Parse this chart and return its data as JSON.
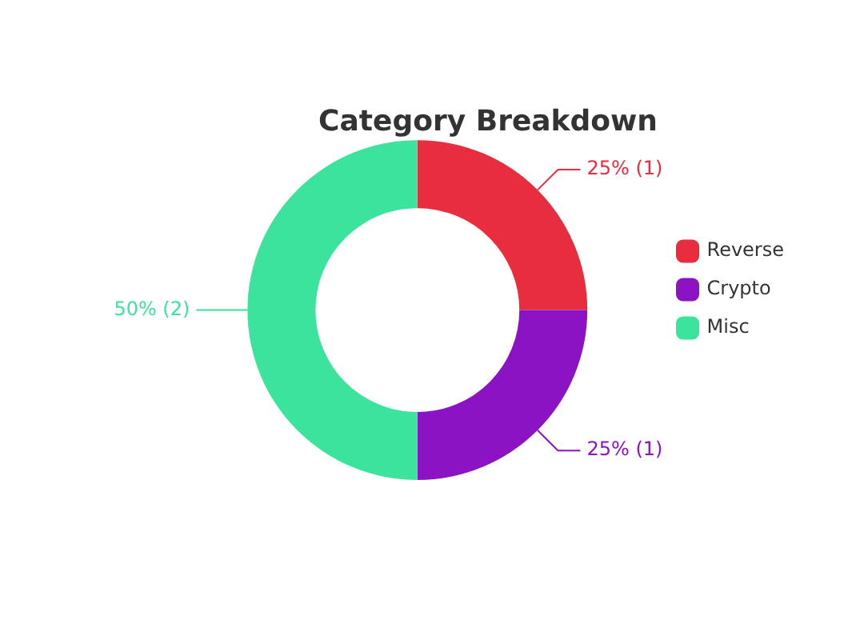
{
  "chart_data": {
    "type": "donut",
    "title": "Category Breakdown",
    "categories": [
      "Reverse",
      "Crypto",
      "Misc"
    ],
    "values": [
      1,
      1,
      2
    ],
    "colors": [
      "#e82d3f",
      "#8b13c4",
      "#3be39c"
    ],
    "value_labels": [
      "25% (1)",
      "25% (1)",
      "50% (2)"
    ],
    "legend": "right"
  }
}
